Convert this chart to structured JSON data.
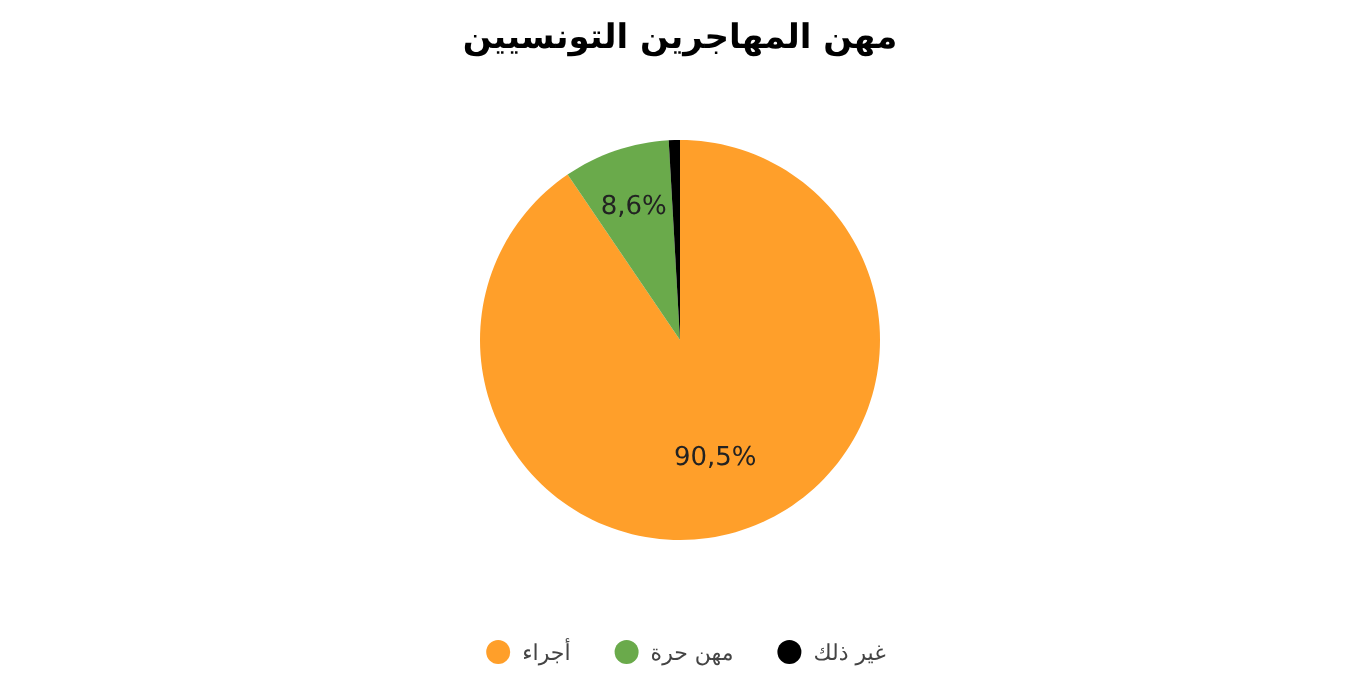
{
  "chart_data": {
    "type": "pie",
    "title": "مهن المهاجرين التونسيين",
    "categories": [
      "أجراء",
      "مهن حرة",
      "غير ذلك"
    ],
    "values": [
      90.5,
      8.6,
      0.9
    ],
    "colors": [
      "#ff9f2a",
      "#6aaa4b",
      "#000000"
    ],
    "value_labels": [
      "90,5%",
      "8,6%",
      null
    ],
    "legend": "bottom"
  }
}
